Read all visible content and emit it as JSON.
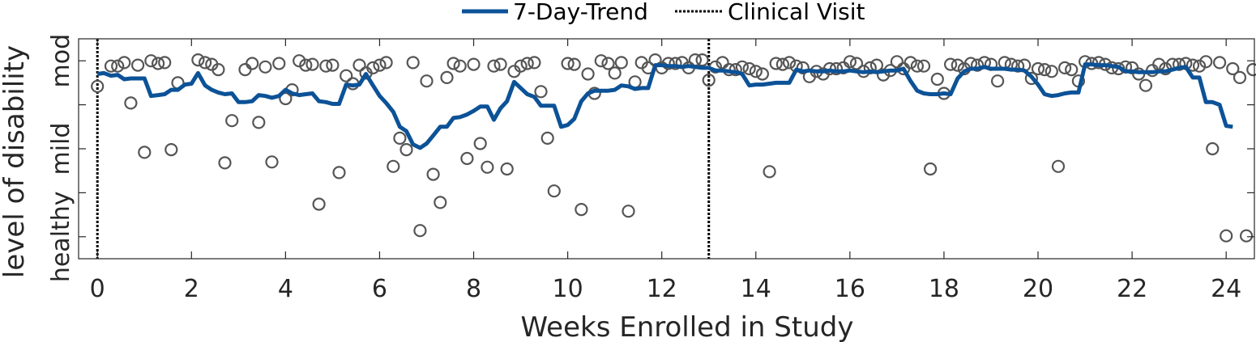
{
  "chart_data": {
    "type": "scatter",
    "xlabel": "Weeks Enrolled in Study",
    "ylabel": "level of disability",
    "xlim": [
      -0.4,
      24.6
    ],
    "ylim": [
      -0.25,
      2.25
    ],
    "x_ticks": [
      0,
      2,
      4,
      6,
      8,
      10,
      12,
      14,
      16,
      18,
      20,
      22,
      24
    ],
    "x_tick_labels": [
      "0",
      "2",
      "4",
      "6",
      "8",
      "10",
      "12",
      "14",
      "16",
      "18",
      "20",
      "22",
      "24"
    ],
    "y_ticks": [
      0,
      0.5,
      1,
      1.5,
      2
    ],
    "y_tick_labels": [
      "healthy",
      "",
      "mild",
      "",
      "mod"
    ],
    "grid": false,
    "legend_position": "top-center",
    "legend": {
      "trend_label": "7-Day-Trend",
      "visit_label": "Clinical Visit"
    },
    "colors": {
      "trend": "#0c5297",
      "points": "#555555",
      "visit": "#000000",
      "axes": "#262626"
    },
    "clinical_visits": [
      0,
      13
    ],
    "points": [
      [
        0.0,
        1.71
      ],
      [
        0.29,
        1.94
      ],
      [
        0.43,
        1.94
      ],
      [
        0.57,
        1.98
      ],
      [
        0.71,
        1.52
      ],
      [
        0.86,
        1.95
      ],
      [
        1.0,
        0.96
      ],
      [
        1.14,
        2.0
      ],
      [
        1.29,
        1.97
      ],
      [
        1.43,
        1.98
      ],
      [
        1.57,
        0.99
      ],
      [
        1.71,
        1.75
      ],
      [
        2.14,
        2.01
      ],
      [
        2.29,
        1.98
      ],
      [
        2.43,
        1.96
      ],
      [
        2.57,
        1.9
      ],
      [
        2.71,
        0.84
      ],
      [
        2.86,
        1.32
      ],
      [
        3.14,
        1.9
      ],
      [
        3.29,
        1.97
      ],
      [
        3.43,
        1.3
      ],
      [
        3.57,
        1.93
      ],
      [
        3.71,
        0.85
      ],
      [
        3.86,
        1.97
      ],
      [
        4.0,
        1.57
      ],
      [
        4.14,
        1.67
      ],
      [
        4.29,
        2.0
      ],
      [
        4.43,
        1.95
      ],
      [
        4.57,
        1.96
      ],
      [
        4.71,
        0.37
      ],
      [
        4.86,
        1.94
      ],
      [
        5.0,
        1.95
      ],
      [
        5.14,
        0.73
      ],
      [
        5.29,
        1.83
      ],
      [
        5.43,
        1.74
      ],
      [
        5.57,
        1.95
      ],
      [
        5.71,
        1.86
      ],
      [
        5.86,
        1.92
      ],
      [
        6.0,
        1.95
      ],
      [
        6.14,
        1.98
      ],
      [
        6.29,
        0.8
      ],
      [
        6.43,
        1.12
      ],
      [
        6.57,
        0.99
      ],
      [
        6.71,
        1.98
      ],
      [
        6.86,
        0.07
      ],
      [
        7.0,
        1.77
      ],
      [
        7.14,
        0.71
      ],
      [
        7.29,
        0.39
      ],
      [
        7.43,
        1.81
      ],
      [
        7.57,
        1.97
      ],
      [
        7.71,
        1.94
      ],
      [
        7.86,
        0.89
      ],
      [
        8.0,
        1.96
      ],
      [
        8.14,
        1.06
      ],
      [
        8.29,
        0.79
      ],
      [
        8.43,
        1.94
      ],
      [
        8.57,
        1.96
      ],
      [
        8.71,
        0.77
      ],
      [
        8.86,
        1.88
      ],
      [
        9.0,
        1.94
      ],
      [
        9.14,
        1.97
      ],
      [
        9.29,
        1.98
      ],
      [
        9.43,
        1.65
      ],
      [
        9.57,
        1.12
      ],
      [
        9.71,
        0.52
      ],
      [
        10.0,
        1.97
      ],
      [
        10.14,
        1.96
      ],
      [
        10.29,
        0.31
      ],
      [
        10.43,
        1.85
      ],
      [
        10.57,
        1.63
      ],
      [
        10.71,
        2.0
      ],
      [
        10.86,
        1.97
      ],
      [
        11.0,
        1.86
      ],
      [
        11.14,
        1.98
      ],
      [
        11.29,
        0.29
      ],
      [
        11.43,
        1.76
      ],
      [
        11.57,
        1.98
      ],
      [
        11.71,
        1.92
      ],
      [
        11.86,
        2.01
      ],
      [
        12.0,
        1.92
      ],
      [
        12.14,
        1.97
      ],
      [
        12.29,
        1.97
      ],
      [
        12.43,
        1.98
      ],
      [
        12.57,
        1.92
      ],
      [
        12.71,
        2.01
      ],
      [
        12.86,
        2.01
      ],
      [
        13.0,
        1.78
      ],
      [
        13.14,
        1.93
      ],
      [
        13.29,
        1.98
      ],
      [
        13.43,
        1.9
      ],
      [
        13.57,
        1.9
      ],
      [
        13.71,
        1.93
      ],
      [
        13.86,
        1.91
      ],
      [
        14.0,
        1.88
      ],
      [
        14.14,
        1.85
      ],
      [
        14.29,
        0.74
      ],
      [
        14.43,
        1.97
      ],
      [
        14.57,
        1.96
      ],
      [
        14.71,
        1.98
      ],
      [
        14.86,
        1.94
      ],
      [
        15.0,
        1.92
      ],
      [
        15.14,
        1.82
      ],
      [
        15.29,
        1.88
      ],
      [
        15.43,
        1.85
      ],
      [
        15.57,
        1.91
      ],
      [
        15.71,
        1.91
      ],
      [
        15.86,
        1.92
      ],
      [
        16.0,
        1.99
      ],
      [
        16.14,
        1.97
      ],
      [
        16.29,
        1.88
      ],
      [
        16.43,
        1.92
      ],
      [
        16.57,
        1.95
      ],
      [
        16.71,
        1.84
      ],
      [
        16.86,
        1.89
      ],
      [
        17.0,
        1.99
      ],
      [
        17.14,
        1.91
      ],
      [
        17.29,
        1.98
      ],
      [
        17.43,
        1.94
      ],
      [
        17.57,
        1.94
      ],
      [
        17.71,
        0.77
      ],
      [
        17.86,
        1.79
      ],
      [
        18.0,
        1.63
      ],
      [
        18.14,
        1.96
      ],
      [
        18.29,
        1.95
      ],
      [
        18.43,
        1.91
      ],
      [
        18.57,
        1.97
      ],
      [
        18.71,
        1.95
      ],
      [
        18.86,
        1.98
      ],
      [
        19.0,
        1.96
      ],
      [
        19.14,
        1.77
      ],
      [
        19.29,
        1.98
      ],
      [
        19.43,
        1.96
      ],
      [
        19.57,
        1.94
      ],
      [
        19.71,
        1.95
      ],
      [
        19.86,
        1.8
      ],
      [
        20.0,
        1.91
      ],
      [
        20.14,
        1.9
      ],
      [
        20.29,
        1.88
      ],
      [
        20.43,
        0.8
      ],
      [
        20.57,
        1.92
      ],
      [
        20.71,
        1.9
      ],
      [
        20.86,
        1.77
      ],
      [
        21.0,
        1.99
      ],
      [
        21.14,
        1.97
      ],
      [
        21.29,
        1.98
      ],
      [
        21.43,
        1.96
      ],
      [
        21.57,
        1.92
      ],
      [
        21.71,
        1.91
      ],
      [
        21.86,
        1.93
      ],
      [
        22.0,
        1.92
      ],
      [
        22.14,
        1.85
      ],
      [
        22.29,
        1.72
      ],
      [
        22.43,
        1.89
      ],
      [
        22.57,
        1.96
      ],
      [
        22.71,
        1.91
      ],
      [
        22.86,
        1.96
      ],
      [
        23.0,
        1.96
      ],
      [
        23.14,
        1.97
      ],
      [
        23.29,
        1.95
      ],
      [
        23.43,
        1.94
      ],
      [
        23.57,
        1.99
      ],
      [
        23.71,
        1.0
      ],
      [
        23.86,
        1.98
      ],
      [
        24.0,
        0.01
      ],
      [
        24.14,
        1.91
      ],
      [
        24.29,
        1.81
      ],
      [
        24.43,
        0.01
      ],
      [
        24.57,
        1.9
      ]
    ],
    "trend": [
      [
        0.0,
        1.85
      ],
      [
        0.14,
        1.86
      ],
      [
        0.29,
        1.83
      ],
      [
        0.43,
        1.84
      ],
      [
        0.57,
        1.79
      ],
      [
        0.71,
        1.8
      ],
      [
        0.86,
        1.8
      ],
      [
        1.0,
        1.8
      ],
      [
        1.14,
        1.6
      ],
      [
        1.29,
        1.61
      ],
      [
        1.43,
        1.62
      ],
      [
        1.57,
        1.67
      ],
      [
        1.71,
        1.67
      ],
      [
        1.86,
        1.73
      ],
      [
        2.0,
        1.74
      ],
      [
        2.14,
        1.86
      ],
      [
        2.29,
        1.72
      ],
      [
        2.43,
        1.67
      ],
      [
        2.57,
        1.64
      ],
      [
        2.71,
        1.62
      ],
      [
        2.86,
        1.63
      ],
      [
        3.0,
        1.53
      ],
      [
        3.14,
        1.53
      ],
      [
        3.29,
        1.54
      ],
      [
        3.43,
        1.61
      ],
      [
        3.57,
        1.6
      ],
      [
        3.71,
        1.58
      ],
      [
        3.86,
        1.6
      ],
      [
        4.0,
        1.67
      ],
      [
        4.14,
        1.63
      ],
      [
        4.29,
        1.61
      ],
      [
        4.43,
        1.62
      ],
      [
        4.57,
        1.63
      ],
      [
        4.71,
        1.54
      ],
      [
        4.86,
        1.53
      ],
      [
        5.0,
        1.51
      ],
      [
        5.14,
        1.51
      ],
      [
        5.29,
        1.73
      ],
      [
        5.43,
        1.72
      ],
      [
        5.57,
        1.73
      ],
      [
        5.71,
        1.85
      ],
      [
        5.86,
        1.72
      ],
      [
        6.0,
        1.6
      ],
      [
        6.14,
        1.52
      ],
      [
        6.29,
        1.42
      ],
      [
        6.43,
        1.25
      ],
      [
        6.57,
        1.2
      ],
      [
        6.71,
        1.05
      ],
      [
        6.86,
        1.01
      ],
      [
        7.0,
        1.06
      ],
      [
        7.14,
        1.15
      ],
      [
        7.29,
        1.25
      ],
      [
        7.43,
        1.25
      ],
      [
        7.57,
        1.35
      ],
      [
        7.71,
        1.36
      ],
      [
        7.86,
        1.39
      ],
      [
        8.0,
        1.43
      ],
      [
        8.14,
        1.48
      ],
      [
        8.29,
        1.48
      ],
      [
        8.43,
        1.33
      ],
      [
        8.57,
        1.46
      ],
      [
        8.71,
        1.54
      ],
      [
        8.86,
        1.76
      ],
      [
        9.0,
        1.69
      ],
      [
        9.14,
        1.62
      ],
      [
        9.29,
        1.59
      ],
      [
        9.43,
        1.49
      ],
      [
        9.57,
        1.49
      ],
      [
        9.71,
        1.49
      ],
      [
        9.86,
        1.25
      ],
      [
        10.0,
        1.27
      ],
      [
        10.14,
        1.34
      ],
      [
        10.29,
        1.54
      ],
      [
        10.43,
        1.63
      ],
      [
        10.57,
        1.66
      ],
      [
        10.71,
        1.66
      ],
      [
        10.86,
        1.66
      ],
      [
        11.0,
        1.67
      ],
      [
        11.14,
        1.72
      ],
      [
        11.29,
        1.71
      ],
      [
        11.43,
        1.68
      ],
      [
        11.57,
        1.69
      ],
      [
        11.71,
        1.69
      ],
      [
        11.86,
        1.95
      ],
      [
        12.0,
        1.95
      ],
      [
        12.14,
        1.94
      ],
      [
        12.29,
        1.94
      ],
      [
        12.43,
        1.93
      ],
      [
        12.57,
        1.94
      ],
      [
        12.71,
        1.93
      ],
      [
        12.86,
        1.92
      ],
      [
        13.0,
        1.92
      ],
      [
        13.14,
        1.89
      ],
      [
        13.29,
        1.89
      ],
      [
        13.43,
        1.88
      ],
      [
        13.57,
        1.87
      ],
      [
        13.71,
        1.85
      ],
      [
        13.86,
        1.72
      ],
      [
        14.0,
        1.73
      ],
      [
        14.14,
        1.73
      ],
      [
        14.29,
        1.74
      ],
      [
        14.43,
        1.75
      ],
      [
        14.57,
        1.75
      ],
      [
        14.71,
        1.75
      ],
      [
        14.86,
        1.9
      ],
      [
        15.0,
        1.88
      ],
      [
        15.14,
        1.89
      ],
      [
        15.29,
        1.88
      ],
      [
        15.43,
        1.88
      ],
      [
        15.57,
        1.89
      ],
      [
        15.71,
        1.88
      ],
      [
        15.86,
        1.88
      ],
      [
        16.0,
        1.89
      ],
      [
        16.14,
        1.88
      ],
      [
        16.29,
        1.87
      ],
      [
        16.43,
        1.88
      ],
      [
        16.57,
        1.87
      ],
      [
        16.71,
        1.88
      ],
      [
        16.86,
        1.89
      ],
      [
        17.0,
        1.89
      ],
      [
        17.14,
        1.91
      ],
      [
        17.29,
        1.77
      ],
      [
        17.43,
        1.66
      ],
      [
        17.57,
        1.63
      ],
      [
        17.71,
        1.62
      ],
      [
        17.86,
        1.62
      ],
      [
        18.0,
        1.63
      ],
      [
        18.14,
        1.62
      ],
      [
        18.29,
        1.8
      ],
      [
        18.43,
        1.88
      ],
      [
        18.57,
        1.91
      ],
      [
        18.71,
        1.91
      ],
      [
        18.86,
        1.93
      ],
      [
        19.0,
        1.91
      ],
      [
        19.14,
        1.91
      ],
      [
        19.29,
        1.91
      ],
      [
        19.43,
        1.9
      ],
      [
        19.57,
        1.9
      ],
      [
        19.71,
        1.89
      ],
      [
        19.86,
        1.82
      ],
      [
        20.0,
        1.73
      ],
      [
        20.14,
        1.62
      ],
      [
        20.29,
        1.6
      ],
      [
        20.43,
        1.61
      ],
      [
        20.57,
        1.63
      ],
      [
        20.71,
        1.64
      ],
      [
        20.86,
        1.64
      ],
      [
        21.0,
        1.96
      ],
      [
        21.14,
        1.96
      ],
      [
        21.29,
        1.95
      ],
      [
        21.43,
        1.95
      ],
      [
        21.57,
        1.94
      ],
      [
        21.71,
        1.93
      ],
      [
        21.86,
        1.88
      ],
      [
        22.0,
        1.88
      ],
      [
        22.14,
        1.87
      ],
      [
        22.29,
        1.87
      ],
      [
        22.43,
        1.87
      ],
      [
        22.57,
        1.88
      ],
      [
        22.71,
        1.88
      ],
      [
        22.86,
        1.9
      ],
      [
        23.0,
        1.92
      ],
      [
        23.14,
        1.93
      ],
      [
        23.29,
        1.81
      ],
      [
        23.43,
        1.81
      ],
      [
        23.57,
        1.53
      ],
      [
        23.71,
        1.53
      ],
      [
        23.86,
        1.5
      ],
      [
        24.0,
        1.26
      ],
      [
        24.14,
        1.25
      ]
    ]
  }
}
